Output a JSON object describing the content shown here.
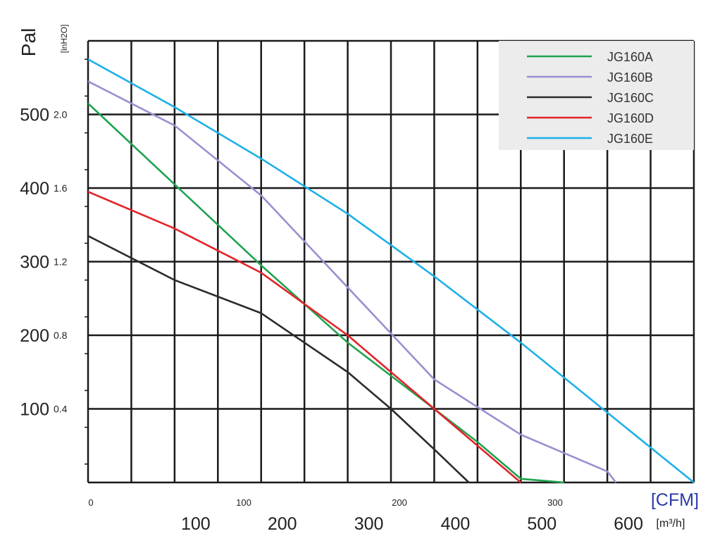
{
  "chart_data": {
    "type": "line",
    "title": "",
    "y_label_primary": "Pal",
    "y_label_secondary": "[inH2O]",
    "x_label_primary": "[m³/h]",
    "x_label_secondary": "[CFM]",
    "x_range_m3h": [
      0,
      700
    ],
    "y_range_pa": [
      0,
      600
    ],
    "grid": true,
    "legend_position": "top-right",
    "y_ticks_pa": [
      100,
      200,
      300,
      400,
      500
    ],
    "y_ticks_inh2o": [
      "0.4",
      "0.8",
      "1.2",
      "1.6",
      "2.0"
    ],
    "x_ticks_m3h": [
      100,
      200,
      300,
      400,
      500,
      600
    ],
    "x_ticks_cfm": [
      "0",
      "100",
      "200",
      "300"
    ],
    "series": [
      {
        "name": "JG160A",
        "color": "#1fa34f",
        "x": [
          0,
          100,
          200,
          300,
          400,
          450,
          500,
          550
        ],
        "y": [
          515,
          405,
          295,
          190,
          100,
          55,
          5,
          0
        ]
      },
      {
        "name": "JG160B",
        "color": "#9b8fd0",
        "x": [
          0,
          100,
          200,
          300,
          400,
          500,
          600,
          610
        ],
        "y": [
          545,
          485,
          390,
          265,
          140,
          65,
          15,
          0
        ]
      },
      {
        "name": "JG160C",
        "color": "#2b2b2b",
        "x": [
          0,
          100,
          200,
          300,
          350,
          400,
          440
        ],
        "y": [
          335,
          275,
          230,
          150,
          100,
          45,
          0
        ]
      },
      {
        "name": "JG160D",
        "color": "#e3232a",
        "x": [
          0,
          100,
          200,
          300,
          400,
          500
        ],
        "y": [
          395,
          345,
          285,
          200,
          100,
          0
        ]
      },
      {
        "name": "JG160E",
        "color": "#1db0e8",
        "x": [
          0,
          100,
          200,
          300,
          400,
          500,
          600,
          700
        ],
        "y": [
          575,
          510,
          440,
          365,
          280,
          190,
          95,
          0
        ]
      }
    ]
  }
}
